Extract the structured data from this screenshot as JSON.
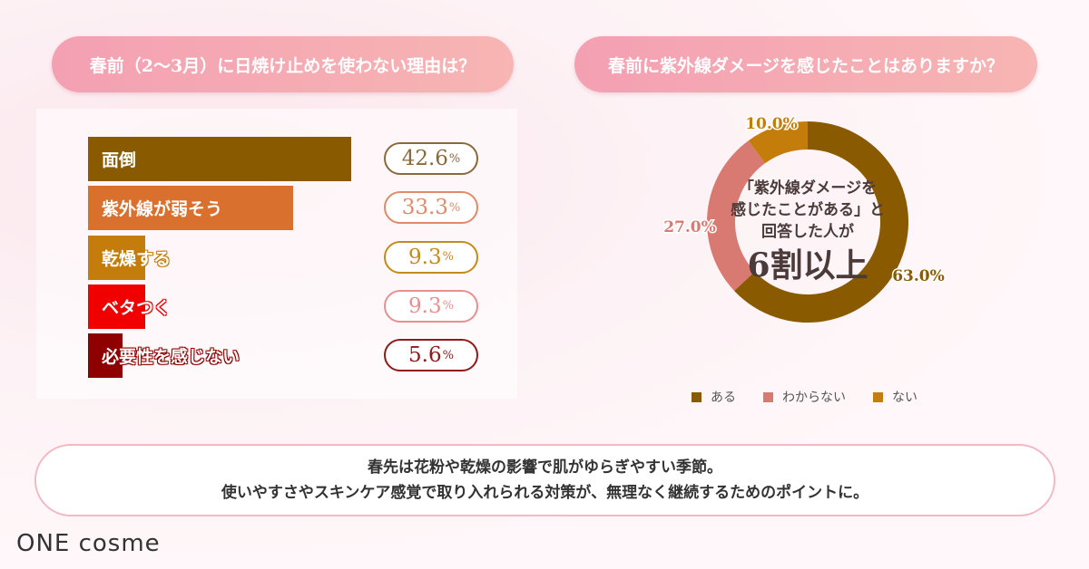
{
  "chart_data": [
    {
      "type": "bar",
      "orientation": "horizontal",
      "title": "春前（2〜3月）に日焼け止めを使わない理由は？",
      "categories": [
        "面倒",
        "紫外線が弱そう",
        "乾燥する",
        "ベタつく",
        "必要性を感じない"
      ],
      "values": [
        42.6,
        33.3,
        9.3,
        9.3,
        5.6
      ],
      "value_labels": [
        "42.6",
        "33.3",
        "9.3",
        "9.3",
        "5.6"
      ],
      "unit": "%",
      "colors": [
        "#8a5a00",
        "#d9702e",
        "#c47d0a",
        "#f00000",
        "#8f0000"
      ],
      "pill_colors": [
        "#8a6a3a",
        "#e08a6a",
        "#c48a1a",
        "#e89090",
        "#8f1a1a"
      ]
    },
    {
      "type": "pie",
      "donut": true,
      "title": "春前に紫外線ダメージを感じたことはありますか？",
      "categories": [
        "ある",
        "わからない",
        "ない"
      ],
      "values": [
        63.0,
        27.0,
        10.0
      ],
      "value_labels": [
        "63.0%",
        "27.0%",
        "10.0%"
      ],
      "colors": [
        "#8a5a00",
        "#d97a72",
        "#c47d0a"
      ],
      "legend": "bottom",
      "center_text": [
        "「紫外線ダメージを",
        "感じたことがある」と",
        "回答した人が"
      ],
      "center_big": "6割以上"
    }
  ],
  "note": {
    "line1": "春先は花粉や乾燥の影響で肌がゆらぎやすい季節。",
    "line2": "使いやすさやスキンケア感覚で取り入れられる対策が、無理なく継続するためのポイントに。"
  },
  "logo": "ONE cosme"
}
